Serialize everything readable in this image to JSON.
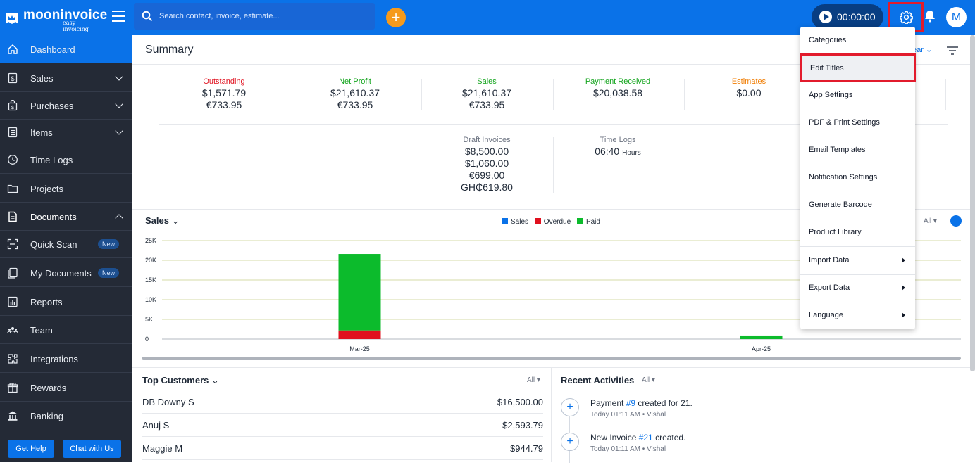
{
  "header": {
    "logo_name": "mooninvoice",
    "logo_tagline": "easy invoicing",
    "search_placeholder": "Search contact, invoice, estimate...",
    "timer": "00:00:00",
    "avatar_initial": "M"
  },
  "sidebar": {
    "items": [
      {
        "label": "Dashboard",
        "icon": "home-icon"
      },
      {
        "label": "Sales",
        "icon": "dollar-doc-icon"
      },
      {
        "label": "Purchases",
        "icon": "bag-icon"
      },
      {
        "label": "Items",
        "icon": "list-icon"
      },
      {
        "label": "Time Logs",
        "icon": "clock-icon"
      },
      {
        "label": "Projects",
        "icon": "folder-icon"
      },
      {
        "label": "Documents",
        "icon": "document-icon"
      },
      {
        "label": "Quick Scan",
        "icon": "scan-icon",
        "badge": "New"
      },
      {
        "label": "My Documents",
        "icon": "my-documents-icon",
        "badge": "New"
      },
      {
        "label": "Reports",
        "icon": "report-icon"
      },
      {
        "label": "Team",
        "icon": "team-icon"
      },
      {
        "label": "Integrations",
        "icon": "integrations-icon"
      },
      {
        "label": "Rewards",
        "icon": "gift-icon"
      },
      {
        "label": "Banking",
        "icon": "bank-icon"
      }
    ],
    "get_help": "Get Help",
    "chat": "Chat with Us"
  },
  "summary": {
    "title": "Summary",
    "year_filter": "ear",
    "outstanding": {
      "label": "Outstanding",
      "v1": "$1,571.79",
      "v2": "€733.95",
      "color": "#e0101e"
    },
    "net_profit": {
      "label": "Net Profit",
      "v1": "$21,610.37",
      "v2": "€733.95",
      "color": "#14a51e"
    },
    "sales": {
      "label": "Sales",
      "v1": "$21,610.37",
      "v2": "€733.95",
      "color": "#14a51e"
    },
    "payment_received": {
      "label": "Payment Received",
      "v1": "$20,038.58",
      "color": "#14a51e"
    },
    "estimates": {
      "label": "Estimates",
      "v1": "$0.00",
      "color": "#f07c00"
    },
    "draft_invoices": {
      "label": "Draft Invoices",
      "v1": "$8,500.00",
      "v2": "$1,060.00",
      "v3": "€699.00",
      "v4": "GH₵619.80"
    },
    "time_logs": {
      "label": "Time Logs",
      "value": "06:40",
      "unit": "Hours"
    }
  },
  "chart": {
    "title": "Sales",
    "filter": "All",
    "legend": [
      {
        "name": "Sales",
        "color": "#0a72e8"
      },
      {
        "name": "Overdue",
        "color": "#e0101e"
      },
      {
        "name": "Paid",
        "color": "#0cbb2c"
      }
    ]
  },
  "chart_data": {
    "type": "bar",
    "stacked": true,
    "categories": [
      "Mar-25",
      "Apr-25"
    ],
    "series": [
      {
        "name": "Overdue",
        "values": [
          2200,
          0
        ]
      },
      {
        "name": "Paid",
        "values": [
          19400,
          900
        ]
      }
    ],
    "yticks": [
      "0",
      "5K",
      "10K",
      "15K",
      "20K",
      "25K"
    ],
    "ylim": [
      0,
      25000
    ],
    "grid": true,
    "legend_position": "top-center"
  },
  "customers": {
    "title": "Top Customers",
    "filter": "All",
    "rows": [
      {
        "name": "DB Downy S",
        "amount": "$16,500.00"
      },
      {
        "name": "Anuj S",
        "amount": "$2,593.79"
      },
      {
        "name": "Maggie M",
        "amount": "$944.79"
      }
    ]
  },
  "activities": {
    "title": "Recent Activities",
    "filter": "All",
    "items": [
      {
        "pre": "Payment ",
        "link": "#9",
        "post": " created for 21.",
        "meta": "Today 01:11 AM • Vishal"
      },
      {
        "pre": "New Invoice ",
        "link": "#21",
        "post": " created.",
        "meta": "Today 01:11 AM • Vishal"
      }
    ]
  },
  "settings_menu": {
    "items": [
      {
        "label": "Categories"
      },
      {
        "label": "Edit Titles",
        "highlighted": true
      },
      {
        "label": "App Settings"
      },
      {
        "label": "PDF & Print Settings"
      },
      {
        "label": "Email Templates"
      },
      {
        "label": "Notification Settings"
      },
      {
        "label": "Generate Barcode"
      },
      {
        "label": "Product Library"
      },
      {
        "label": "Import Data",
        "submenu": true
      },
      {
        "label": "Export Data",
        "submenu": true
      },
      {
        "label": "Language",
        "submenu": true
      }
    ]
  }
}
